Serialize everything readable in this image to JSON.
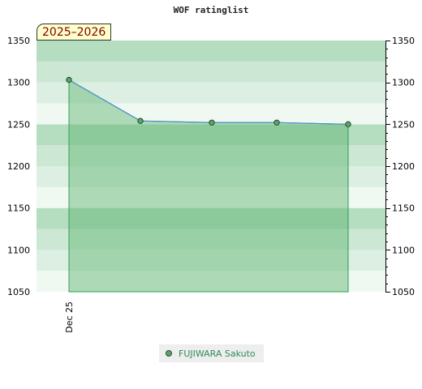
{
  "chart_data": {
    "type": "area",
    "title": "WOF ratinglist",
    "season_badge": "2025–2026",
    "ylim": [
      1050,
      1350
    ],
    "yticks": [
      1050,
      1100,
      1150,
      1200,
      1250,
      1300,
      1350
    ],
    "x_tick_labels": [
      "Dec 25"
    ],
    "legend_position": "bottom-center",
    "series": [
      {
        "name": "FUJIWARA Sakuto",
        "values": [
          1303,
          1254,
          1252,
          1252,
          1250
        ]
      }
    ],
    "colors": {
      "band_dark": "#b5ddc0",
      "band_mid": "#cce8d4",
      "band_light": "#dcefe2",
      "band_lightest": "#f0f8f2",
      "area_fill": "#5cb46e",
      "area_line": "#2e9e4f",
      "series_line": "#4a90c8",
      "marker": "#5aa469"
    }
  }
}
